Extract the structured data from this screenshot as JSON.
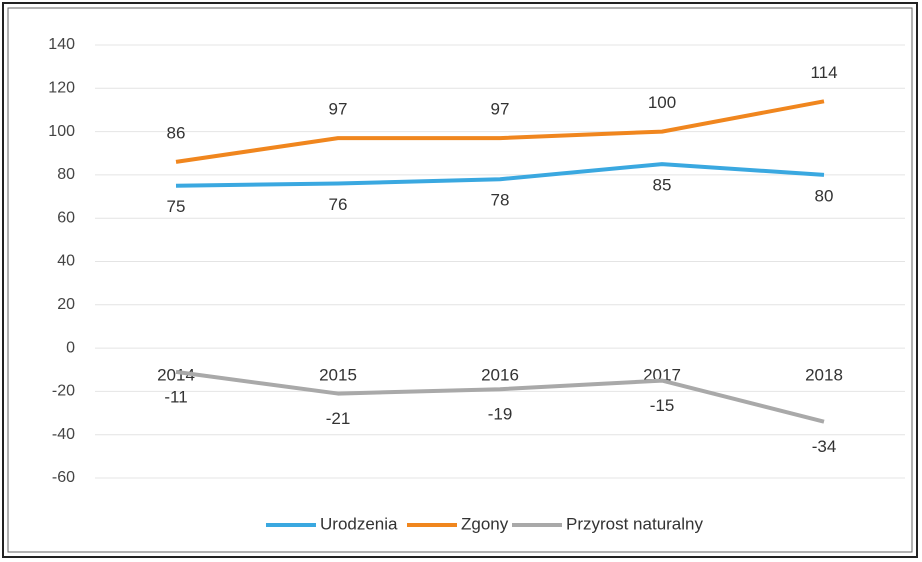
{
  "chart_data": {
    "type": "line",
    "categories": [
      "2014",
      "2015",
      "2016",
      "2017",
      "2018"
    ],
    "series": [
      {
        "name": "Urodzenia",
        "color": "#3aa8e0",
        "values": [
          75,
          76,
          78,
          85,
          80
        ]
      },
      {
        "name": "Zgony",
        "color": "#f0861e",
        "values": [
          86,
          97,
          97,
          100,
          114
        ]
      },
      {
        "name": "Przyrost naturalny",
        "color": "#a9a9a9",
        "values": [
          -11,
          -21,
          -19,
          -15,
          -34
        ]
      }
    ],
    "ylim": [
      -60,
      140
    ],
    "yticks": [
      -60,
      -40,
      -20,
      0,
      20,
      40,
      60,
      80,
      100,
      120,
      140
    ],
    "grid": true,
    "legend": "bottom"
  }
}
